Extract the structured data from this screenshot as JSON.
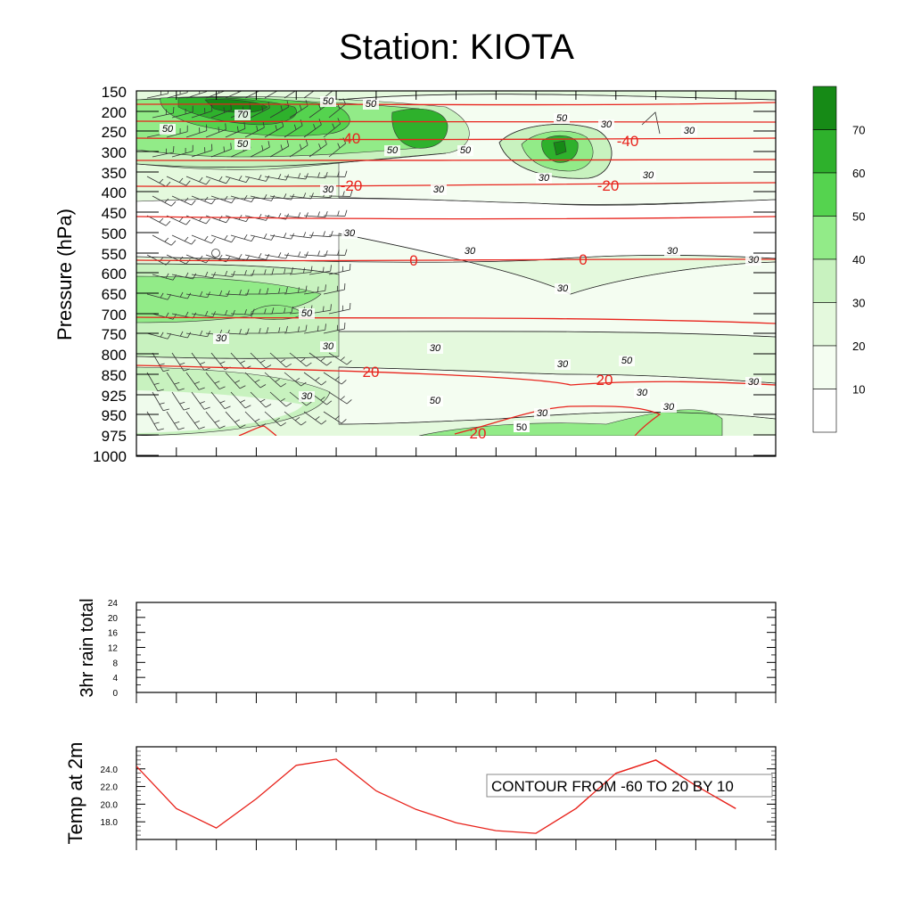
{
  "title": "Station: KIOTA",
  "chart_data": [
    {
      "type": "heatmap",
      "name": "upper-air-cross-section",
      "ylabel": "Pressure (hPa)",
      "y_ticks": [
        "150",
        "200",
        "250",
        "300",
        "350",
        "400",
        "450",
        "500",
        "550",
        "600",
        "650",
        "700",
        "750",
        "800",
        "850",
        "925",
        "950",
        "975",
        "1000"
      ],
      "x_tick_count": 17,
      "fill_colorbar": {
        "labels": [
          "10",
          "20",
          "30",
          "40",
          "50",
          "60",
          "70"
        ],
        "colors": [
          "#ffffff",
          "#f4fdf1",
          "#e4f9dd",
          "#c8f2bf",
          "#92eb88",
          "#55d34f",
          "#2eb12c",
          "#168a16"
        ]
      },
      "humidity_contour_labels": [
        "50",
        "50",
        "50",
        "70",
        "50",
        "50",
        "50",
        "50",
        "30",
        "30",
        "30",
        "30",
        "30",
        "30",
        "30",
        "30",
        "30",
        "30",
        "30",
        "30",
        "30",
        "30",
        "30",
        "50",
        "30",
        "50",
        "50",
        "30",
        "30",
        "30",
        "30"
      ],
      "temperature_contours": {
        "color": "#e8231c",
        "labels": [
          "-40",
          "-40",
          "-20",
          "-20",
          "0",
          "0",
          "20",
          "20",
          "20"
        ]
      }
    },
    {
      "type": "bar",
      "name": "rain",
      "ylabel": "3hr rain total",
      "y_ticks": [
        "24",
        "20",
        "16",
        "12",
        "8",
        "4",
        "0"
      ],
      "ylim": [
        0,
        24
      ],
      "values": []
    },
    {
      "type": "line",
      "name": "temperature",
      "ylabel": "Temp at 2m",
      "y_ticks": [
        "24.0",
        "22.0",
        "20.0",
        "18.0"
      ],
      "ylim": [
        16.0,
        26.5
      ],
      "x": [
        0,
        1,
        2,
        3,
        4,
        5,
        6,
        7,
        8,
        9,
        10,
        11,
        12,
        13,
        14,
        15
      ],
      "values": [
        24.3,
        19.5,
        17.3,
        20.6,
        24.4,
        25.1,
        21.5,
        19.4,
        17.9,
        17.0,
        16.7,
        19.5,
        23.5,
        25.0,
        22.1,
        19.5
      ],
      "line_color": "#e8231c",
      "annotation": "CONTOUR FROM -60 TO 20 BY 10"
    }
  ]
}
